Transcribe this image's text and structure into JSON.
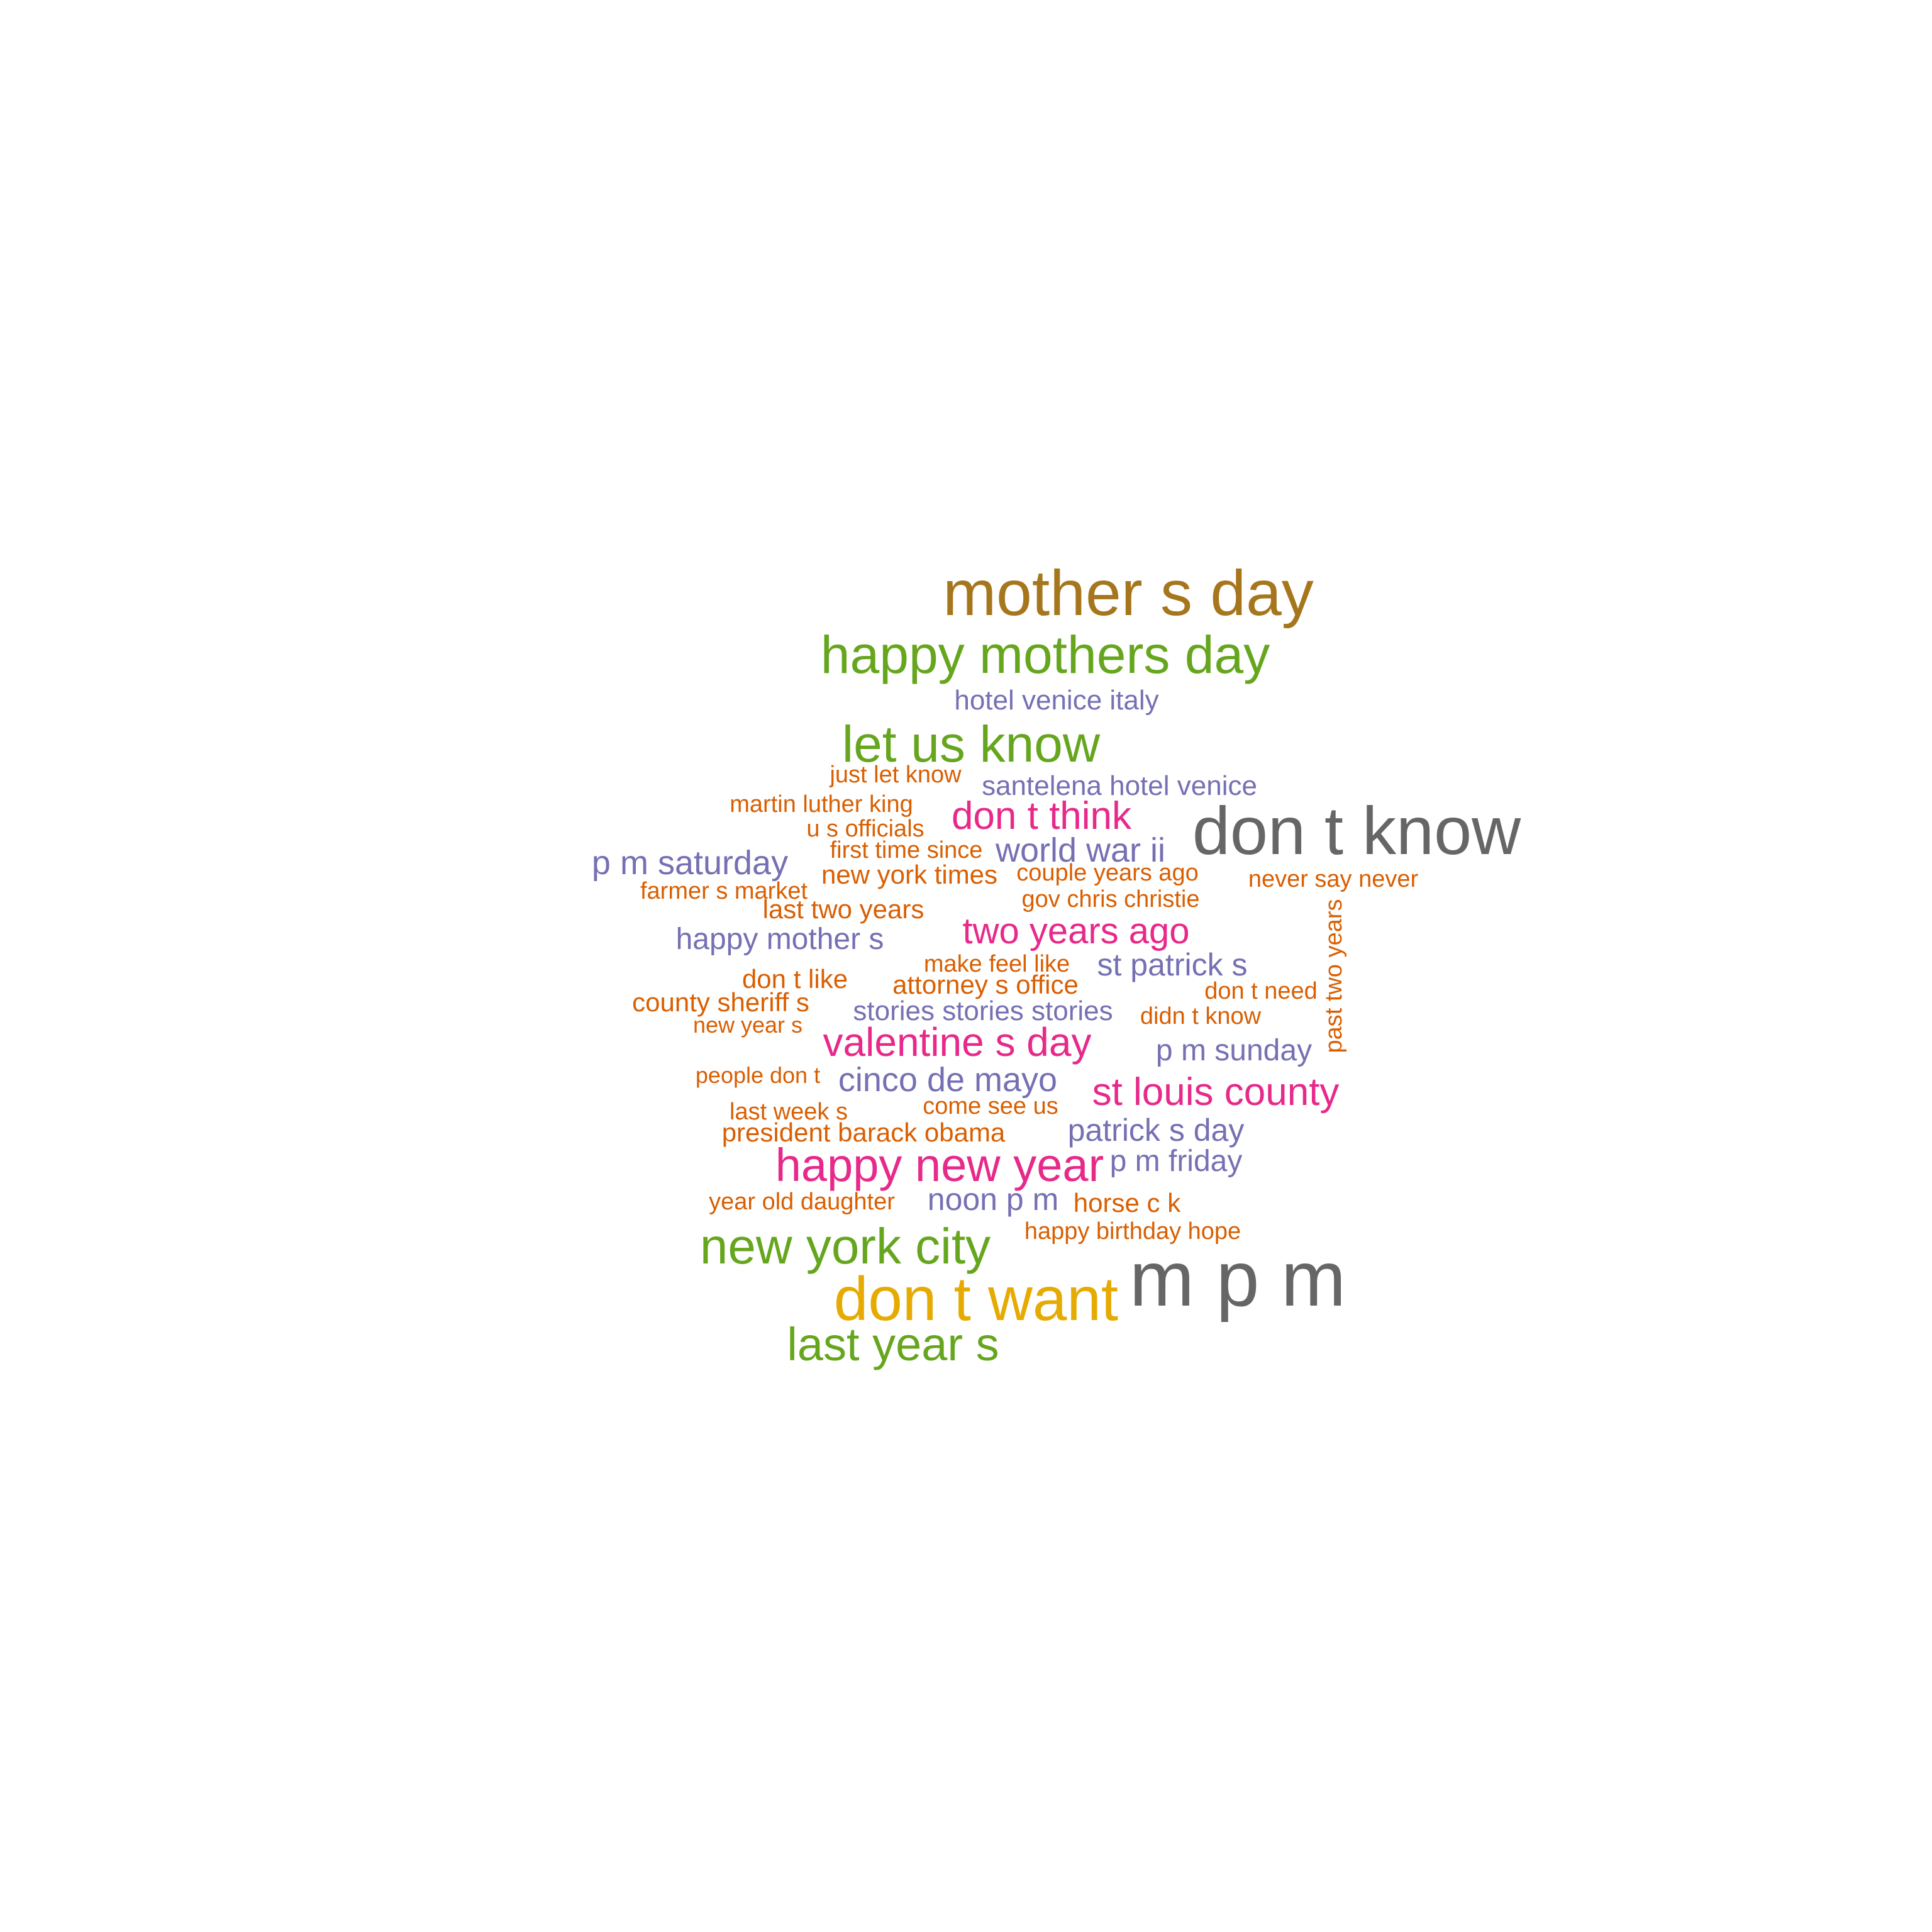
{
  "palette": {
    "gray": "#666666",
    "gold": "#a6761d",
    "green": "#66a61e",
    "purple": "#7570b3",
    "pink": "#e7298a",
    "orange": "#d95f02",
    "yellow": "#e6ab02"
  },
  "words": [
    {
      "text": "mother s day",
      "color": "#a6761d",
      "weight": 9
    },
    {
      "text": "happy mothers day",
      "color": "#66a61e",
      "weight": 7
    },
    {
      "text": "hotel venice italy",
      "color": "#7570b3",
      "weight": 3
    },
    {
      "text": "let us know",
      "color": "#66a61e",
      "weight": 7
    },
    {
      "text": "just let know",
      "color": "#d95f02",
      "weight": 2
    },
    {
      "text": "santelena hotel venice",
      "color": "#7570b3",
      "weight": 3
    },
    {
      "text": "martin luther king",
      "color": "#d95f02",
      "weight": 2
    },
    {
      "text": "don t think",
      "color": "#e7298a",
      "weight": 5
    },
    {
      "text": "don t know",
      "color": "#666666",
      "weight": 10
    },
    {
      "text": "u s officials",
      "color": "#d95f02",
      "weight": 2
    },
    {
      "text": "first time since",
      "color": "#d95f02",
      "weight": 2
    },
    {
      "text": "world war ii",
      "color": "#7570b3",
      "weight": 4
    },
    {
      "text": "p m saturday",
      "color": "#7570b3",
      "weight": 4
    },
    {
      "text": "new york times",
      "color": "#d95f02",
      "weight": 2
    },
    {
      "text": "couple years ago",
      "color": "#d95f02",
      "weight": 2
    },
    {
      "text": "never say never",
      "color": "#d95f02",
      "weight": 2
    },
    {
      "text": "farmer s market",
      "color": "#d95f02",
      "weight": 2
    },
    {
      "text": "gov chris christie",
      "color": "#d95f02",
      "weight": 2
    },
    {
      "text": "last two years",
      "color": "#d95f02",
      "weight": 2
    },
    {
      "text": "past two years",
      "color": "#d95f02",
      "weight": 2
    },
    {
      "text": "happy mother s",
      "color": "#7570b3",
      "weight": 3
    },
    {
      "text": "two years ago",
      "color": "#e7298a",
      "weight": 4
    },
    {
      "text": "make feel like",
      "color": "#d95f02",
      "weight": 2
    },
    {
      "text": "st patrick s",
      "color": "#7570b3",
      "weight": 4
    },
    {
      "text": "don t like",
      "color": "#d95f02",
      "weight": 2
    },
    {
      "text": "attorney s office",
      "color": "#d95f02",
      "weight": 2
    },
    {
      "text": "don t need",
      "color": "#d95f02",
      "weight": 2
    },
    {
      "text": "county sheriff s",
      "color": "#d95f02",
      "weight": 2
    },
    {
      "text": "stories stories stories",
      "color": "#7570b3",
      "weight": 3
    },
    {
      "text": "didn t know",
      "color": "#d95f02",
      "weight": 2
    },
    {
      "text": "new year s",
      "color": "#d95f02",
      "weight": 1
    },
    {
      "text": "valentine s day",
      "color": "#e7298a",
      "weight": 5
    },
    {
      "text": "p m sunday",
      "color": "#7570b3",
      "weight": 3
    },
    {
      "text": "people don t",
      "color": "#d95f02",
      "weight": 1
    },
    {
      "text": "cinco de mayo",
      "color": "#7570b3",
      "weight": 4
    },
    {
      "text": "st louis county",
      "color": "#e7298a",
      "weight": 5
    },
    {
      "text": "last week s",
      "color": "#d95f02",
      "weight": 2
    },
    {
      "text": "come see us",
      "color": "#d95f02",
      "weight": 2
    },
    {
      "text": "president barack obama",
      "color": "#d95f02",
      "weight": 2
    },
    {
      "text": "patrick s day",
      "color": "#7570b3",
      "weight": 4
    },
    {
      "text": "happy new year",
      "color": "#e7298a",
      "weight": 6
    },
    {
      "text": "p m friday",
      "color": "#7570b3",
      "weight": 3
    },
    {
      "text": "year old daughter",
      "color": "#d95f02",
      "weight": 2
    },
    {
      "text": "noon p m",
      "color": "#7570b3",
      "weight": 3
    },
    {
      "text": "horse c k",
      "color": "#d95f02",
      "weight": 2
    },
    {
      "text": "happy birthday hope",
      "color": "#d95f02",
      "weight": 2
    },
    {
      "text": "new york city",
      "color": "#66a61e",
      "weight": 7
    },
    {
      "text": "m p m",
      "color": "#666666",
      "weight": 11
    },
    {
      "text": "don t want",
      "color": "#e6ab02",
      "weight": 9
    },
    {
      "text": "last year s",
      "color": "#66a61e",
      "weight": 6
    }
  ]
}
